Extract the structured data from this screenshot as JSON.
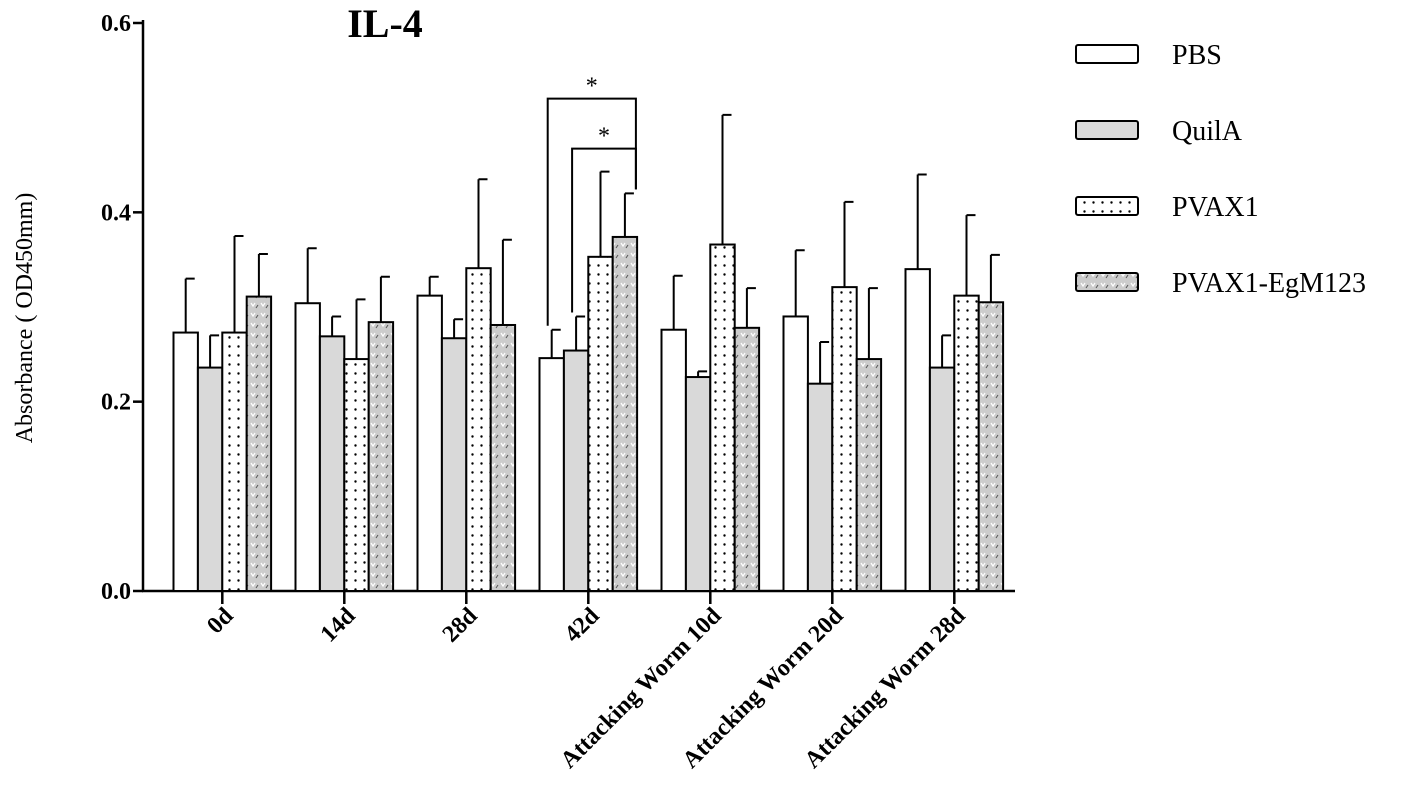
{
  "chart_data": {
    "type": "bar",
    "title": "IL-4",
    "ylabel": "Absorbance ( OD450mm)",
    "xlabel": "",
    "ylim": [
      0,
      0.6
    ],
    "yticks": [
      "0.0",
      "0.2",
      "0.4",
      "0.6"
    ],
    "ytick_values": [
      0,
      0.2,
      0.4,
      0.6
    ],
    "categories": [
      "0d",
      "14d",
      "28d",
      "42d",
      "Attacking Worm   10d",
      "Attacking Worm   20d",
      "Attacking Worm   28d"
    ],
    "series": [
      {
        "name": "PBS",
        "pattern": "white",
        "values": [
          0.273,
          0.304,
          0.312,
          0.246,
          0.276,
          0.29,
          0.34
        ],
        "errors": [
          0.057,
          0.058,
          0.02,
          0.03,
          0.057,
          0.07,
          0.1
        ]
      },
      {
        "name": "QuilA",
        "pattern": "gray",
        "values": [
          0.236,
          0.269,
          0.267,
          0.254,
          0.226,
          0.219,
          0.236
        ],
        "errors": [
          0.034,
          0.021,
          0.02,
          0.036,
          0.006,
          0.044,
          0.034
        ]
      },
      {
        "name": "PVAX1",
        "pattern": "dots",
        "values": [
          0.273,
          0.245,
          0.341,
          0.353,
          0.366,
          0.321,
          0.312
        ],
        "errors": [
          0.102,
          0.063,
          0.094,
          0.09,
          0.137,
          0.09,
          0.085
        ]
      },
      {
        "name": "PVAX1-EgM123",
        "pattern": "checker",
        "values": [
          0.311,
          0.284,
          0.281,
          0.374,
          0.278,
          0.245,
          0.305
        ],
        "errors": [
          0.045,
          0.048,
          0.09,
          0.046,
          0.042,
          0.075,
          0.05
        ]
      }
    ],
    "significance": [
      {
        "category": "42d",
        "from": "PBS",
        "to": "PVAX1-EgM123",
        "label": "*"
      },
      {
        "category": "42d",
        "from": "QuilA",
        "to": "PVAX1-EgM123",
        "label": "*"
      }
    ],
    "legend_position": "right",
    "grid": false,
    "colors": {
      "bar_white": "#ffffff",
      "bar_gray": "#d9d9d9",
      "bar_pattern": "#cccccc",
      "stroke": "#000000"
    }
  }
}
